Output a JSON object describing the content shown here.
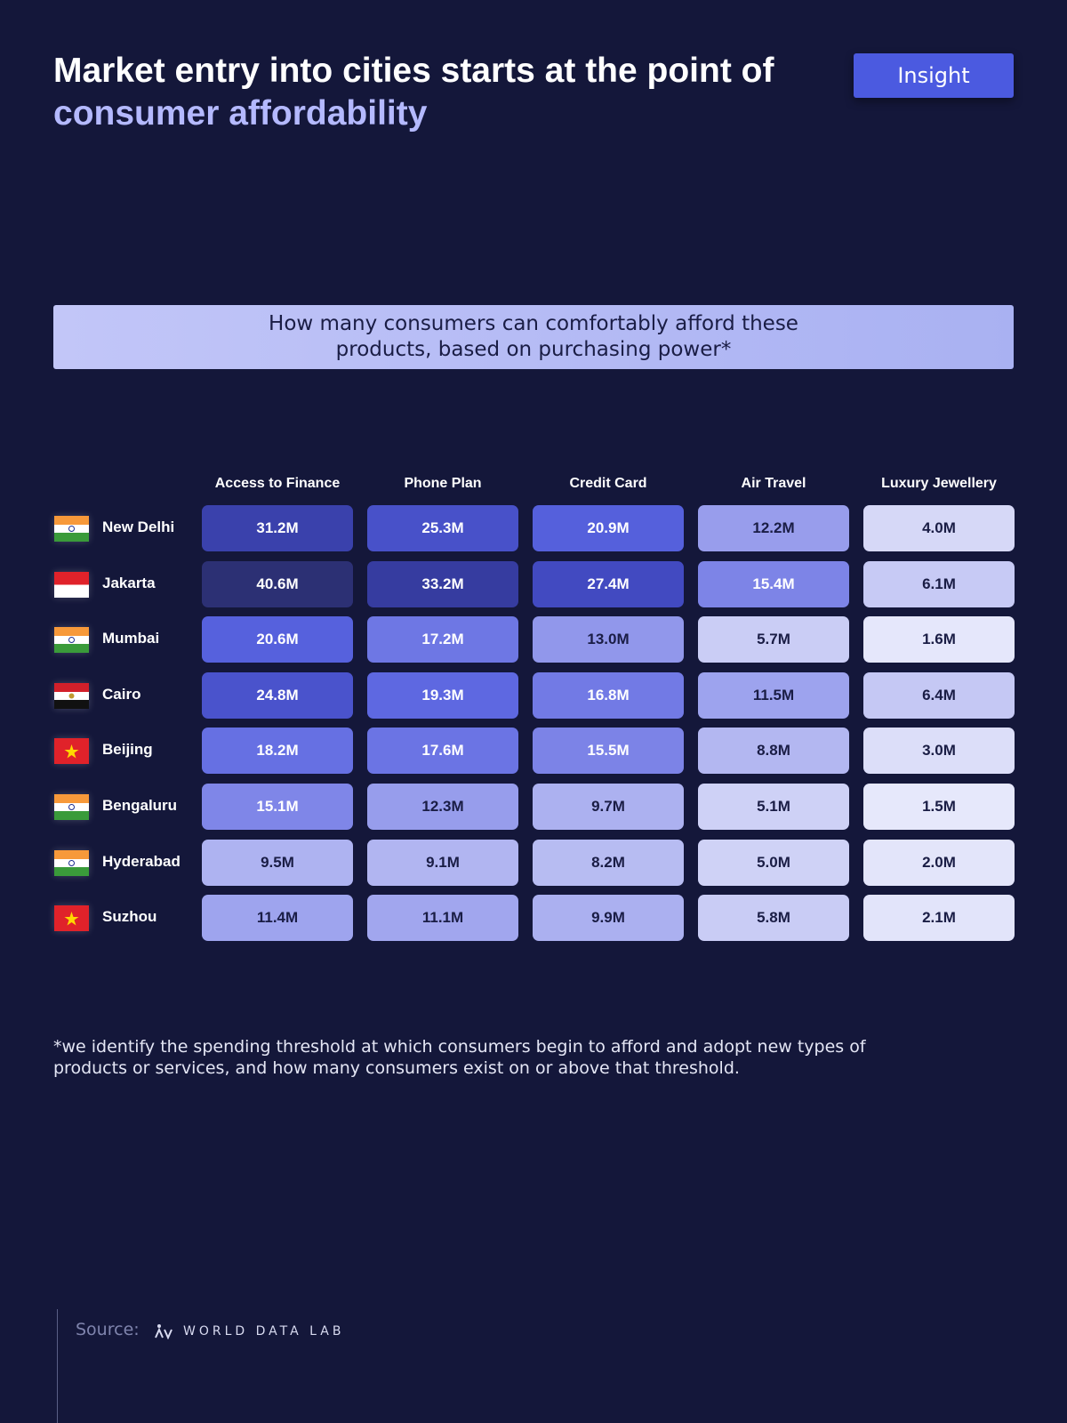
{
  "header": {
    "title_start": "Market entry into cities starts at the point of",
    "title_highlight": "consumer affordability",
    "badge": "Insight"
  },
  "subtitle": "How many consumers can comfortably afford these products, based on purchasing power*",
  "table": {
    "columns": [
      "Access to Finance",
      "Phone Plan",
      "Credit Card",
      "Air Travel",
      "Luxury Jewellery"
    ],
    "rows": [
      {
        "city": "New Delhi",
        "cells": [
          "31.2M",
          "25.3M",
          "20.9M",
          "12.2M",
          "4.0M"
        ]
      },
      {
        "city": "Jakarta",
        "cells": [
          "40.6M",
          "33.2M",
          "27.4M",
          "15.4M",
          "6.1M"
        ]
      },
      {
        "city": "Mumbai",
        "cells": [
          "20.6M",
          "17.2M",
          "13.0M",
          "5.7M",
          "1.6M"
        ]
      },
      {
        "city": "Cairo",
        "cells": [
          "24.8M",
          "19.3M",
          "16.8M",
          "11.5M",
          "6.4M"
        ]
      },
      {
        "city": "Beijing",
        "cells": [
          "18.2M",
          "17.6M",
          "15.5M",
          "8.8M",
          "3.0M"
        ]
      },
      {
        "city": "Bengaluru",
        "cells": [
          "15.1M",
          "12.3M",
          "9.7M",
          "5.1M",
          "1.5M"
        ]
      },
      {
        "city": "Hyderabad",
        "cells": [
          "9.5M",
          "9.1M",
          "8.2M",
          "5.0M",
          "2.0M"
        ]
      },
      {
        "city": "Suzhou",
        "cells": [
          "11.4M",
          "11.1M",
          "9.9M",
          "5.8M",
          "2.1M"
        ]
      }
    ]
  },
  "footnote": "*we identify the spending threshold at which consumers begin to afford and adopt new types of products or services, and how many consumers exist on or above that threshold.",
  "source": {
    "label": "Source:",
    "brand": "WORLD DATA LAB"
  }
}
